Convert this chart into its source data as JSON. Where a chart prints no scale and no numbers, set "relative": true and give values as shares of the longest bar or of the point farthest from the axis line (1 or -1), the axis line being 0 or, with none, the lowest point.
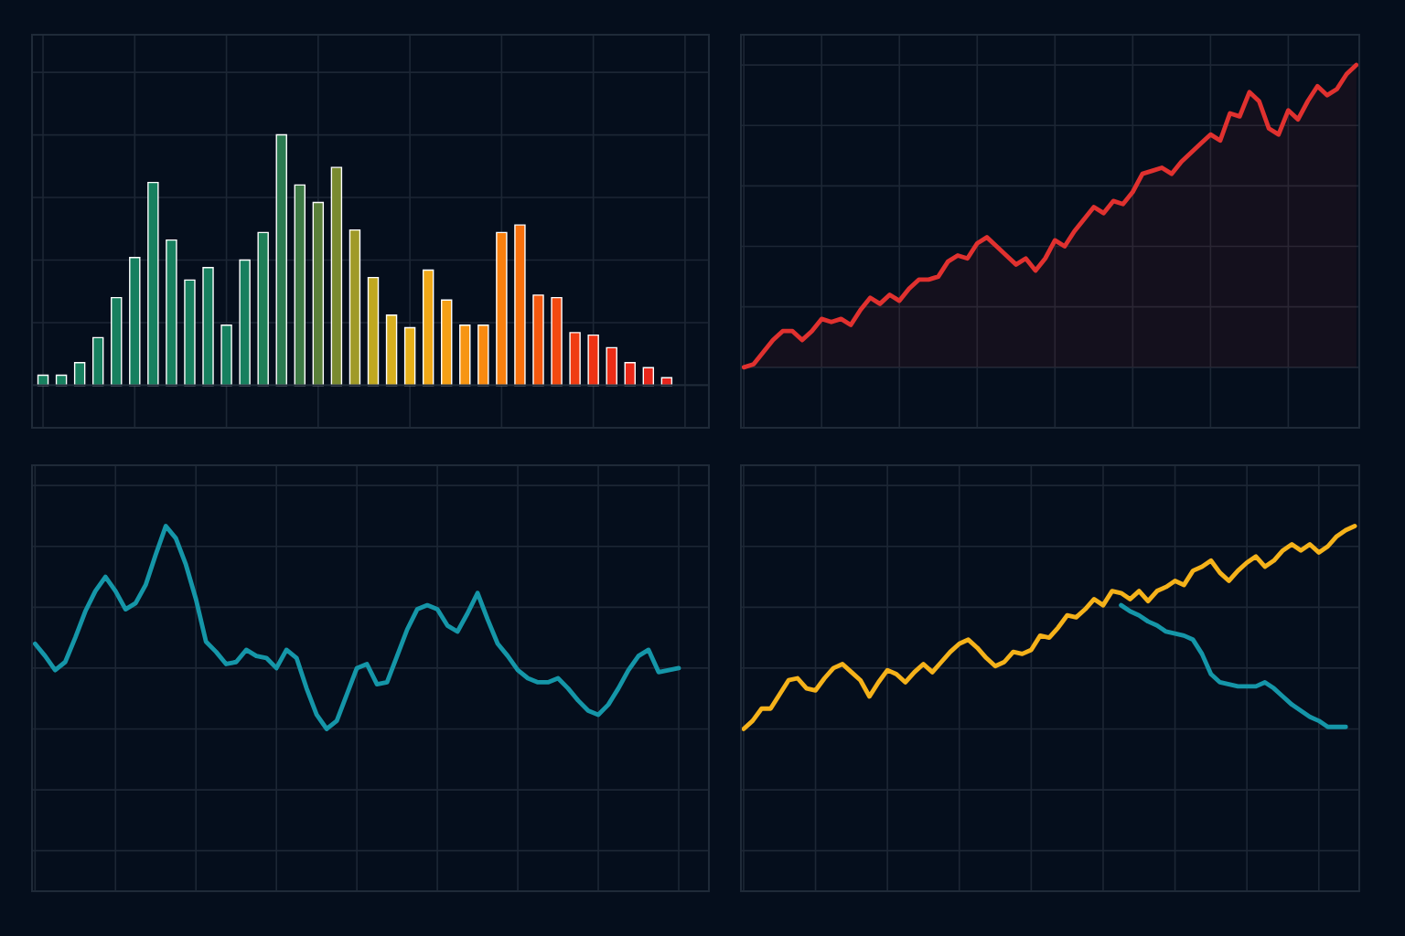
{
  "chart_data": [
    {
      "type": "bar",
      "relative": true,
      "grid": true,
      "legend": false,
      "categories": [
        null,
        null,
        null,
        null,
        null,
        null,
        null,
        null,
        null,
        null,
        null,
        null,
        null,
        null,
        null,
        null,
        null,
        null,
        null,
        null,
        null,
        null,
        null,
        null,
        null,
        null,
        null,
        null,
        null,
        null,
        null,
        null,
        null,
        null,
        null
      ],
      "values": [
        0.04,
        0.04,
        0.09,
        0.19,
        0.35,
        0.51,
        0.81,
        0.58,
        0.42,
        0.47,
        0.24,
        0.5,
        0.61,
        1,
        0.8,
        0.73,
        0.87,
        0.62,
        0.43,
        0.28,
        0.23,
        0.46,
        0.34,
        0.24,
        0.24,
        0.61,
        0.64,
        0.36,
        0.35,
        0.21,
        0.2,
        0.15,
        0.09,
        0.07,
        0.03
      ],
      "colors": [
        "#17805f",
        "#17805f",
        "#17805f",
        "#17805f",
        "#17805f",
        "#17805f",
        "#17805f",
        "#17805f",
        "#17805f",
        "#17805f",
        "#17805f",
        "#17805f",
        "#1f7f58",
        "#2a7a50",
        "#3d7a45",
        "#5a7f3a",
        "#7a8a30",
        "#a09a28",
        "#c0a820",
        "#d8b020",
        "#e6b01a",
        "#f0a818",
        "#f5a015",
        "#f79512",
        "#f88a10",
        "#f9800e",
        "#f8700c",
        "#f5580e",
        "#f24a10",
        "#f03c12",
        "#ee3214",
        "#ec2c16",
        "#ea2818",
        "#e8261a",
        "#e6241c"
      ]
    },
    {
      "type": "area",
      "relative": true,
      "grid": true,
      "legend": false,
      "categories": [
        null,
        null,
        null,
        null,
        null,
        null,
        null,
        null,
        null,
        null,
        null,
        null,
        null,
        null,
        null,
        null,
        null,
        null,
        null,
        null,
        null,
        null,
        null,
        null,
        null,
        null,
        null,
        null,
        null,
        null,
        null,
        null,
        null,
        null,
        null,
        null,
        null,
        null,
        null,
        null,
        null,
        null,
        null,
        null,
        null,
        null,
        null,
        null,
        null,
        null,
        null,
        null,
        null,
        null,
        null,
        null,
        null,
        null,
        null,
        null,
        null,
        null,
        null,
        null
      ],
      "series": [
        {
          "color": "#e0312f",
          "values": [
            0,
            0.01,
            0.05,
            0.09,
            0.12,
            0.12,
            0.09,
            0.12,
            0.16,
            0.15,
            0.16,
            0.14,
            0.19,
            0.23,
            0.21,
            0.24,
            0.22,
            0.26,
            0.29,
            0.29,
            0.3,
            0.35,
            0.37,
            0.36,
            0.41,
            0.43,
            0.4,
            0.37,
            0.34,
            0.36,
            0.32,
            0.36,
            0.42,
            0.4,
            0.45,
            0.49,
            0.53,
            0.51,
            0.55,
            0.54,
            0.58,
            0.64,
            0.65,
            0.66,
            0.64,
            0.68,
            0.71,
            0.74,
            0.77,
            0.75,
            0.84,
            0.83,
            0.91,
            0.88,
            0.79,
            0.77,
            0.85,
            0.82,
            0.88,
            0.93,
            0.9,
            0.92,
            0.97,
            1
          ]
        }
      ]
    },
    {
      "type": "line",
      "relative": true,
      "grid": true,
      "legend": false,
      "categories": [
        null,
        null,
        null,
        null,
        null,
        null,
        null,
        null,
        null,
        null,
        null,
        null,
        null,
        null,
        null,
        null,
        null,
        null,
        null,
        null,
        null,
        null,
        null,
        null,
        null,
        null,
        null,
        null,
        null,
        null,
        null,
        null,
        null,
        null,
        null,
        null,
        null,
        null,
        null,
        null,
        null,
        null,
        null,
        null,
        null,
        null,
        null,
        null,
        null,
        null,
        null,
        null,
        null,
        null,
        null,
        null,
        null,
        null,
        null,
        null,
        null,
        null,
        null,
        null,
        null
      ],
      "series": [
        {
          "color": "#1596a8",
          "values": [
            0.42,
            0.36,
            0.29,
            0.33,
            0.45,
            0.58,
            0.68,
            0.75,
            0.68,
            0.59,
            0.62,
            0.71,
            0.86,
            1,
            0.94,
            0.81,
            0.64,
            0.43,
            0.38,
            0.32,
            0.33,
            0.39,
            0.36,
            0.35,
            0.3,
            0.39,
            0.35,
            0.2,
            0.07,
            0,
            0.04,
            0.17,
            0.3,
            0.32,
            0.22,
            0.23,
            0.36,
            0.49,
            0.59,
            0.61,
            0.59,
            0.51,
            0.48,
            0.57,
            0.67,
            0.54,
            0.42,
            0.36,
            0.29,
            0.25,
            0.23,
            0.23,
            0.25,
            0.2,
            0.14,
            0.09,
            0.07,
            0.12,
            0.2,
            0.29,
            0.36,
            0.39,
            0.28,
            0.29,
            0.3
          ]
        }
      ]
    },
    {
      "type": "line",
      "relative": true,
      "grid": true,
      "legend": false,
      "categories": [
        null,
        null,
        null,
        null,
        null,
        null,
        null,
        null,
        null,
        null,
        null,
        null,
        null,
        null,
        null,
        null,
        null,
        null,
        null,
        null,
        null,
        null,
        null,
        null,
        null,
        null,
        null,
        null,
        null,
        null,
        null,
        null,
        null,
        null,
        null,
        null,
        null,
        null,
        null,
        null,
        null,
        null,
        null,
        null,
        null,
        null,
        null,
        null,
        null,
        null,
        null,
        null,
        null,
        null,
        null,
        null,
        null,
        null,
        null,
        null,
        null,
        null,
        null,
        null,
        null,
        null,
        null,
        null,
        null
      ],
      "series": [
        {
          "color": "#f5b21a",
          "values": [
            0,
            0.04,
            0.1,
            0.1,
            0.17,
            0.24,
            0.25,
            0.2,
            0.19,
            0.25,
            0.3,
            0.32,
            0.28,
            0.24,
            0.16,
            0.23,
            0.29,
            0.27,
            0.23,
            0.28,
            0.32,
            0.28,
            0.33,
            0.38,
            0.42,
            0.44,
            0.4,
            0.35,
            0.31,
            0.33,
            0.38,
            0.37,
            0.39,
            0.46,
            0.45,
            0.5,
            0.56,
            0.55,
            0.59,
            0.64,
            0.61,
            0.68,
            0.67,
            0.64,
            0.68,
            0.63,
            0.68,
            0.7,
            0.73,
            0.71,
            0.78,
            0.8,
            0.83,
            0.77,
            0.73,
            0.78,
            0.82,
            0.85,
            0.8,
            0.83,
            0.88,
            0.91,
            0.88,
            0.91,
            0.87,
            0.9,
            0.95,
            0.98,
            1
          ]
        },
        {
          "color": "#1596a8",
          "values": [
            null,
            null,
            null,
            null,
            null,
            null,
            null,
            null,
            null,
            null,
            null,
            null,
            null,
            null,
            null,
            null,
            null,
            null,
            null,
            null,
            null,
            null,
            null,
            null,
            null,
            null,
            null,
            null,
            null,
            null,
            null,
            null,
            null,
            null,
            null,
            null,
            null,
            null,
            null,
            null,
            null,
            null,
            0.61,
            0.58,
            0.56,
            0.53,
            0.51,
            0.48,
            0.47,
            0.46,
            0.44,
            0.37,
            0.27,
            0.23,
            0.22,
            0.21,
            0.21,
            0.21,
            0.23,
            0.2,
            0.16,
            0.12,
            0.09,
            0.06,
            0.04,
            0.01,
            0.01,
            0.01,
            null
          ]
        }
      ]
    }
  ]
}
